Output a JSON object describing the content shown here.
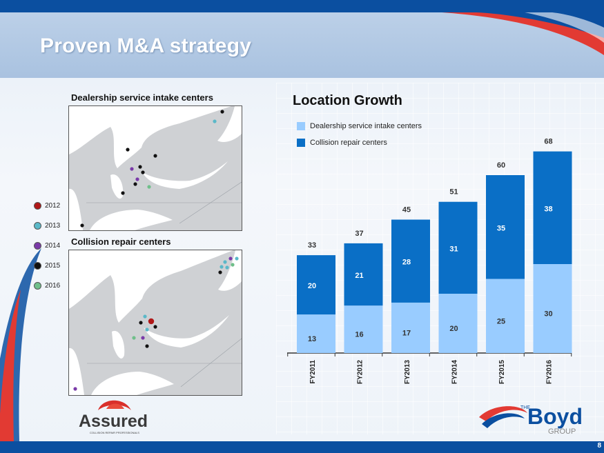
{
  "slide": {
    "title": "Proven M&A strategy",
    "page_number": "8"
  },
  "maps": {
    "dealership_label": "Dealership service intake centers",
    "collision_label": "Collision repair centers"
  },
  "year_legend": [
    {
      "year": "2012",
      "color": "#b01818"
    },
    {
      "year": "2013",
      "color": "#5ab8c8"
    },
    {
      "year": "2014",
      "color": "#7a3aa8"
    },
    {
      "year": "2015",
      "color": "#111111"
    },
    {
      "year": "2016",
      "color": "#6fbf8a"
    }
  ],
  "chart_legend": [
    {
      "label": "Dealership service intake centers",
      "color": "#99ccff"
    },
    {
      "label": "Collision repair centers",
      "color": "#0a6fc6"
    }
  ],
  "chart_data": {
    "type": "bar",
    "stacked": true,
    "title": "Location Growth",
    "categories": [
      "FY2011",
      "FY2012",
      "FY2013",
      "FY2014",
      "FY2015",
      "FY2016"
    ],
    "series": [
      {
        "name": "Dealership service intake centers",
        "values": [
          13,
          16,
          17,
          20,
          25,
          30
        ],
        "color": "#99ccff"
      },
      {
        "name": "Collision repair centers",
        "values": [
          20,
          21,
          28,
          31,
          35,
          38
        ],
        "color": "#0a6fc6"
      }
    ],
    "totals": [
      33,
      37,
      45,
      51,
      60,
      68
    ],
    "ylim": [
      0,
      70
    ],
    "legend_position": "top-left",
    "grid": false
  },
  "logos": {
    "assured_name": "Assured",
    "assured_tagline": "COLLISION REPAIR PROFESSIONALS",
    "boyd_the": "THE",
    "boyd_name": "Boyd",
    "boyd_group": "GROUP"
  },
  "colors": {
    "brand_blue": "#0b4fa0",
    "brand_red": "#d9302b"
  }
}
